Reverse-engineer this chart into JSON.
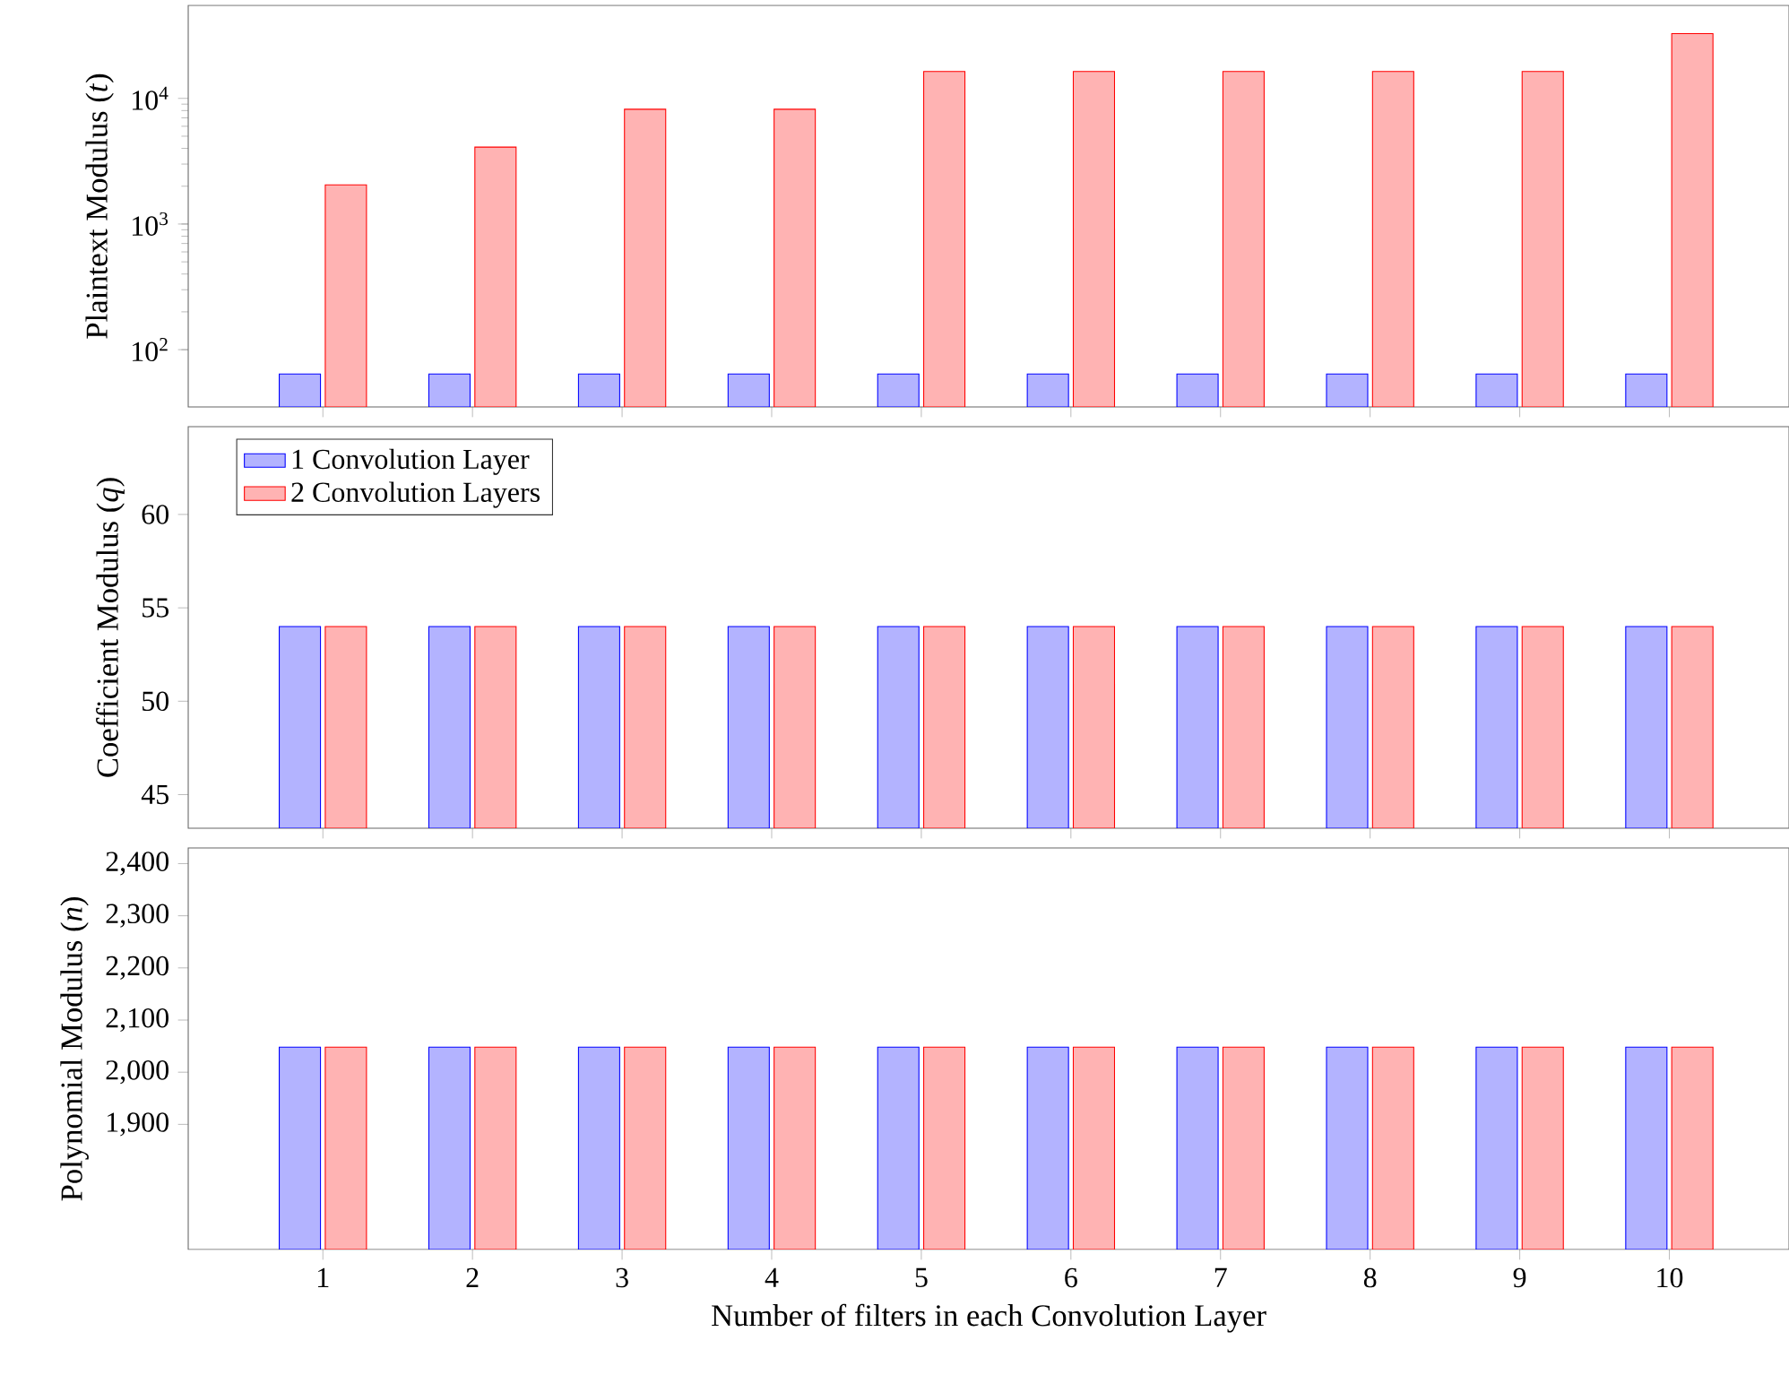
{
  "chart_data": [
    {
      "type": "bar",
      "ylabel": "Plaintext Modulus (*t*)",
      "x": [
        1,
        2,
        3,
        4,
        5,
        6,
        7,
        8,
        9,
        10
      ],
      "xlim": [
        0.1,
        10.8
      ],
      "xticks": [
        1,
        2,
        3,
        4,
        5,
        6,
        7,
        8,
        9,
        10
      ],
      "log": "y",
      "ylim": [
        35,
        55000
      ],
      "yticks": [
        {
          "value": 100,
          "label": "10$^{2}$"
        },
        {
          "value": 1000,
          "label": "10$^{3}$"
        },
        {
          "value": 10000,
          "label": "10$^{4}$"
        }
      ],
      "tick_labels": "y",
      "series": [
        {
          "color": "#b3b3ff",
          "values": [
            64,
            64,
            64,
            64,
            64,
            64,
            64,
            64,
            64,
            64
          ]
        },
        {
          "color": "#ffb3b3",
          "values": [
            2048,
            4096,
            8192,
            8192,
            16384,
            16384,
            16384,
            16384,
            16384,
            32768
          ]
        }
      ]
    },
    {
      "type": "bar",
      "ylabel": "Coefficient Modulus (*q*)",
      "x": [
        1,
        2,
        3,
        4,
        5,
        6,
        7,
        8,
        9,
        10
      ],
      "xlim": [
        0.1,
        10.8
      ],
      "xticks": [
        1,
        2,
        3,
        4,
        5,
        6,
        7,
        8,
        9,
        10
      ],
      "ylim": [
        43.2,
        64.7
      ],
      "yticks": [
        45,
        50,
        55,
        60
      ],
      "tick_labels": "y",
      "legend": "top left",
      "series": [
        {
          "name": "1 Convolution Layer",
          "color": "#b3b3ff",
          "values": [
            54,
            54,
            54,
            54,
            54,
            54,
            54,
            54,
            54,
            54
          ]
        },
        {
          "name": "2 Convolution Layers",
          "color": "#ffb3b3",
          "values": [
            54,
            54,
            54,
            54,
            54,
            54,
            54,
            54,
            54,
            54
          ]
        }
      ]
    },
    {
      "type": "bar",
      "ylabel": "Polynomial Modulus (*n*)",
      "xlabel": "Number of filters in each Convolution Layer",
      "x": [
        1,
        2,
        3,
        4,
        5,
        6,
        7,
        8,
        9,
        10
      ],
      "xlim": [
        0.1,
        10.8
      ],
      "xticks": [
        1,
        2,
        3,
        4,
        5,
        6,
        7,
        8,
        9,
        10
      ],
      "ylim": [
        1660,
        2430
      ],
      "yticks": [
        {
          "value": 1900,
          "label": "1,900"
        },
        {
          "value": 2000,
          "label": "2,000"
        },
        {
          "value": 2100,
          "label": "2,100"
        },
        {
          "value": 2200,
          "label": "2,200"
        },
        {
          "value": 2300,
          "label": "2,300"
        },
        {
          "value": 2400,
          "label": "2,400"
        }
      ],
      "series": [
        {
          "color": "#b3b3ff",
          "values": [
            2048,
            2048,
            2048,
            2048,
            2048,
            2048,
            2048,
            2048,
            2048,
            2048
          ]
        },
        {
          "color": "#ffb3b3",
          "values": [
            2048,
            2048,
            2048,
            2048,
            2048,
            2048,
            2048,
            2048,
            2048,
            2048
          ]
        }
      ]
    }
  ]
}
